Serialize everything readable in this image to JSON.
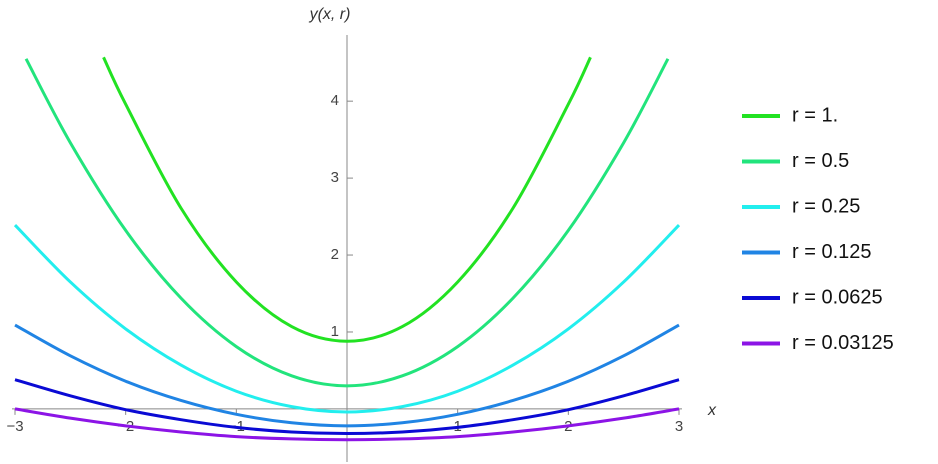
{
  "chart_data": {
    "type": "line",
    "x_label": "x",
    "y_label": "y(x, r)",
    "xlim": [
      -3,
      3
    ],
    "ylim": [
      -0.69,
      4.86
    ],
    "xticks": [
      {
        "value": -3,
        "label": "−3"
      },
      {
        "value": -2,
        "label": "−2"
      },
      {
        "value": -1,
        "label": "−1"
      },
      1,
      2,
      3
    ],
    "yticks": [
      1,
      2,
      3,
      4
    ],
    "legend": "right",
    "series": [
      {
        "name": "r = 1.",
        "color": "#22e222",
        "x": [
          -2.2,
          -2,
          -1.5,
          -1,
          -0.5,
          0,
          0.5,
          1,
          1.5,
          2,
          2.2
        ],
        "values": [
          4.57,
          3.96,
          2.61,
          1.65,
          1.07,
          0.88,
          1.07,
          1.65,
          2.61,
          3.96,
          4.57
        ]
      },
      {
        "name": "r = 0.5",
        "color": "#22e47c",
        "x": [
          -2.9,
          -2.5,
          -2,
          -1.5,
          -1,
          -0.5,
          0,
          0.5,
          1,
          1.5,
          2,
          2.5,
          2.9
        ],
        "values": [
          4.55,
          3.46,
          2.32,
          1.44,
          0.81,
          0.43,
          0.3,
          0.43,
          0.81,
          1.44,
          2.32,
          3.46,
          4.55
        ]
      },
      {
        "name": "r = 0.25",
        "color": "#22eeee",
        "x": [
          -3,
          -2.5,
          -2,
          -1.5,
          -1,
          -0.5,
          0,
          0.5,
          1,
          1.5,
          2,
          2.5,
          3
        ],
        "values": [
          2.39,
          1.65,
          1.04,
          0.57,
          0.23,
          0.03,
          -0.04,
          0.03,
          0.23,
          0.57,
          1.04,
          1.65,
          2.39
        ]
      },
      {
        "name": "r = 0.125",
        "color": "#2084e4",
        "x": [
          -3,
          -2.5,
          -2,
          -1.5,
          -1,
          -0.5,
          0,
          0.5,
          1,
          1.5,
          2,
          2.5,
          3
        ],
        "values": [
          1.09,
          0.69,
          0.36,
          0.11,
          -0.07,
          -0.18,
          -0.22,
          -0.18,
          -0.07,
          0.11,
          0.36,
          0.69,
          1.09
        ]
      },
      {
        "name": "r = 0.0625",
        "color": "#0a0ad4",
        "x": [
          -3,
          -2.5,
          -2,
          -1.5,
          -1,
          -0.5,
          0,
          0.5,
          1,
          1.5,
          2,
          2.5,
          3
        ],
        "values": [
          0.38,
          0.17,
          -0.01,
          -0.14,
          -0.24,
          -0.3,
          -0.32,
          -0.3,
          -0.24,
          -0.14,
          -0.01,
          0.17,
          0.38
        ]
      },
      {
        "name": "r = 0.03125",
        "color": "#8c14e6",
        "x": [
          -3,
          -2.5,
          -2,
          -1.5,
          -1,
          -0.5,
          0,
          0.5,
          1,
          1.5,
          2,
          2.5,
          3
        ],
        "values": [
          0,
          -0.12,
          -0.22,
          -0.3,
          -0.36,
          -0.39,
          -0.4,
          -0.39,
          -0.36,
          -0.3,
          -0.22,
          -0.12,
          0
        ]
      }
    ]
  }
}
